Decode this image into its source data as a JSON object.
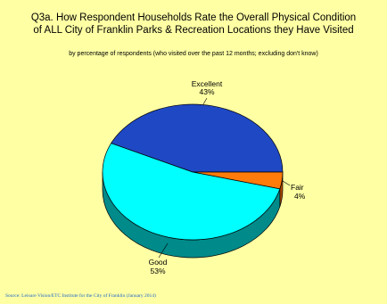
{
  "chart_data": {
    "type": "pie",
    "title": "Q3a. How Respondent Households Rate the Overall Physical Condition of ALL City of Franklin Parks & Recreation Locations they Have Visited",
    "title_line1": "Q3a. How Respondent Households Rate the Overall Physical Condition",
    "title_line2": "of ALL City of Franklin Parks & Recreation Locations they Have Visited",
    "subtitle": "by percentage of respondents (who visited over the past 12 months; excluding don't know)",
    "source": "Source:  Leisure Vision/ETC Institute for the City of Franklin (January 2014)",
    "slices": [
      {
        "label": "Excellent",
        "value": 43,
        "value_label": "43%",
        "color": "#1f48c4",
        "side_color": "#14287a"
      },
      {
        "label": "Fair",
        "value": 4,
        "value_label": "4%",
        "color": "#ff7b0a",
        "side_color": "#b04a00"
      },
      {
        "label": "Good",
        "value": 53,
        "value_label": "53%",
        "color": "#00ffff",
        "side_color": "#008a8a"
      }
    ],
    "legend": "none",
    "style": "3d-pie"
  },
  "colors": {
    "background": "#ffffa4",
    "source_text": "#1b64c8"
  }
}
